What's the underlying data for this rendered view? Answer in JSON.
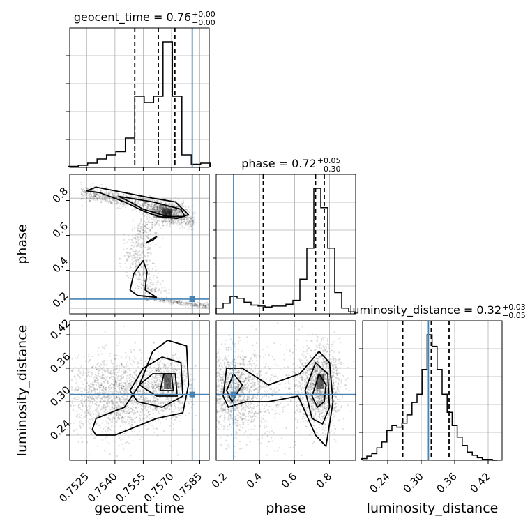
{
  "chart_data": [
    {
      "type": "histogram",
      "panel": "geocent_time 1D marginal",
      "title": {
        "param": "geocent_time",
        "median": "0.76",
        "plus": "+0.00",
        "minus": "−0.00"
      },
      "x": [
        0.7518,
        0.7523,
        0.7528,
        0.7533,
        0.7538,
        0.7543,
        0.7548,
        0.7553,
        0.7558,
        0.7563,
        0.7568,
        0.7573,
        0.7578,
        0.7583,
        0.7588
      ],
      "counts": [
        1,
        2,
        4,
        8,
        12,
        15,
        28,
        68,
        62,
        68,
        120,
        68,
        12,
        3,
        4
      ],
      "quantiles": [
        0.75505,
        0.7563,
        0.75718
      ],
      "truth": 0.7581,
      "xlim": [
        0.7516,
        0.759
      ],
      "color_line": "#000000",
      "color_truth": "#4682b4"
    },
    {
      "type": "histogram",
      "panel": "phase 1D marginal",
      "title": {
        "param": "phase",
        "median": "0.72",
        "plus": "+0.05",
        "minus": "−0.30"
      },
      "x": [
        0.17,
        0.21,
        0.25,
        0.29,
        0.33,
        0.37,
        0.41,
        0.45,
        0.49,
        0.53,
        0.57,
        0.61,
        0.65,
        0.69,
        0.73,
        0.77,
        0.81,
        0.85,
        0.89,
        0.93
      ],
      "counts": [
        6,
        11,
        18,
        16,
        12,
        9,
        8,
        7,
        8,
        8,
        10,
        14,
        36,
        68,
        130,
        110,
        68,
        22,
        6,
        2
      ],
      "quantiles": [
        0.42,
        0.72,
        0.77
      ],
      "truth": 0.25,
      "xlim": [
        0.15,
        0.95
      ]
    },
    {
      "type": "histogram",
      "panel": "luminosity_distance 1D marginal",
      "title": {
        "param": "luminosity_distance",
        "median": "0.32",
        "plus": "+0.03",
        "minus": "−0.05"
      },
      "x": [
        0.198,
        0.207,
        0.216,
        0.225,
        0.234,
        0.243,
        0.252,
        0.261,
        0.27,
        0.279,
        0.288,
        0.297,
        0.306,
        0.315,
        0.324,
        0.333,
        0.342,
        0.351,
        0.36,
        0.369,
        0.378,
        0.387,
        0.396,
        0.405,
        0.414,
        0.423,
        0.432
      ],
      "counts": [
        2,
        5,
        8,
        15,
        22,
        36,
        42,
        40,
        45,
        55,
        70,
        80,
        110,
        152,
        138,
        110,
        80,
        58,
        42,
        28,
        18,
        10,
        6,
        3,
        1,
        1,
        0
      ],
      "quantiles": [
        0.267,
        0.318,
        0.35
      ],
      "truth": 0.313,
      "xlim": [
        0.195,
        0.445
      ]
    },
    {
      "type": "scatter-density",
      "panel": "phase vs geocent_time",
      "x_param": "geocent_time",
      "y_param": "phase",
      "xlim": [
        0.7516,
        0.759
      ],
      "ylim": [
        0.17,
        0.93
      ],
      "truth": {
        "x": 0.7581,
        "y": 0.25
      }
    },
    {
      "type": "scatter-density",
      "panel": "luminosity_distance vs geocent_time",
      "x_param": "geocent_time",
      "y_param": "luminosity_distance",
      "xlim": [
        0.7516,
        0.759
      ],
      "ylim": [
        0.195,
        0.445
      ],
      "truth": {
        "x": 0.7581,
        "y": 0.313
      }
    },
    {
      "type": "scatter-density",
      "panel": "luminosity_distance vs phase",
      "x_param": "phase",
      "y_param": "luminosity_distance",
      "xlim": [
        0.15,
        0.95
      ],
      "ylim": [
        0.195,
        0.445
      ],
      "truth": {
        "x": 0.25,
        "y": 0.313
      }
    }
  ],
  "axes": {
    "geocent_time": {
      "label": "geocent_time",
      "ticks": [
        0.7525,
        0.754,
        0.7555,
        0.757,
        0.7585
      ],
      "tick_labels": [
        "0.7525",
        "0.7540",
        "0.7555",
        "0.7570",
        "0.7585"
      ]
    },
    "phase": {
      "label": "phase",
      "ticks": [
        0.2,
        0.4,
        0.6,
        0.8
      ],
      "tick_labels": [
        "0.2",
        "0.4",
        "0.6",
        "0.8"
      ]
    },
    "luminosity_distance": {
      "label": "luminosity_distance",
      "ticks": [
        0.24,
        0.3,
        0.36,
        0.42
      ],
      "tick_labels": [
        "0.24",
        "0.30",
        "0.36",
        "0.42"
      ]
    }
  },
  "style": {
    "truth_color": "#4682b4",
    "line_color": "#000000",
    "grid": true,
    "grid_color": "#b0b0b0"
  }
}
